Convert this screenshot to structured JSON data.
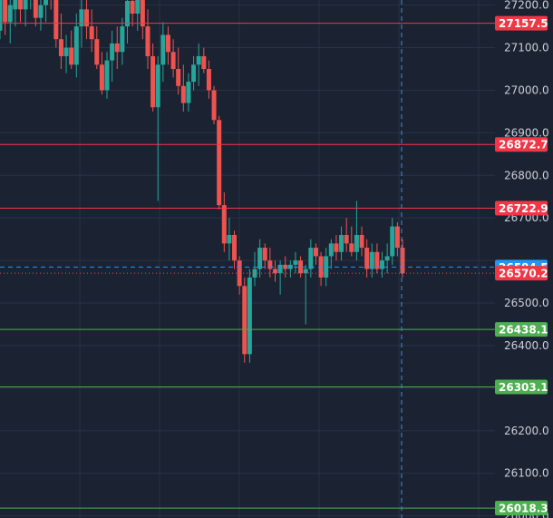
{
  "colors": {
    "background": "#1b2332",
    "grid": "#273246",
    "up": "#26a69a",
    "down": "#ef5350",
    "resistance": "#f23645",
    "support": "#4caf50",
    "current": "#2196f3",
    "axis_text": "#c9cfd8"
  },
  "price_axis": {
    "ticks": [
      "27200.0",
      "27100.0",
      "27000.0",
      "26900.0",
      "26800.0",
      "26700.0",
      "26500.0",
      "26400.0",
      "26200.0",
      "26100.0",
      "26000.0"
    ],
    "tick_values": [
      27200,
      27100,
      27000,
      26900,
      26800,
      26700,
      26500,
      26400,
      26200,
      26100,
      26000
    ]
  },
  "price_lines": [
    {
      "label": "27157.5",
      "value": 27157.5,
      "kind": "resistance"
    },
    {
      "label": "26872.7",
      "value": 26872.7,
      "kind": "resistance"
    },
    {
      "label": "26722.9",
      "value": 26722.9,
      "kind": "resistance"
    },
    {
      "label": "26438.1",
      "value": 26438.1,
      "kind": "support"
    },
    {
      "label": "26303.1",
      "value": 26303.1,
      "kind": "support"
    },
    {
      "label": "26018.3",
      "value": 26018.3,
      "kind": "support"
    }
  ],
  "price_tags": [
    {
      "label": "26584.5",
      "value": 26584.5,
      "kind": "current"
    },
    {
      "label": "26570.2",
      "value": 26570.2,
      "kind": "last"
    }
  ],
  "chart_data": {
    "type": "candlestick",
    "y_unit": "price",
    "ylim": [
      25995,
      27212
    ],
    "candles": [
      [
        27140,
        27290,
        27120,
        27250
      ],
      [
        27240,
        27260,
        27130,
        27160
      ],
      [
        27160,
        27230,
        27110,
        27200
      ],
      [
        27190,
        27280,
        27150,
        27270
      ],
      [
        27270,
        27300,
        27160,
        27190
      ],
      [
        27190,
        27250,
        27150,
        27230
      ],
      [
        27220,
        27280,
        27190,
        27240
      ],
      [
        27240,
        27270,
        27150,
        27170
      ],
      [
        27170,
        27230,
        27140,
        27200
      ],
      [
        27200,
        27260,
        27160,
        27240
      ],
      [
        27240,
        27270,
        27190,
        27220
      ],
      [
        27220,
        27250,
        27100,
        27120
      ],
      [
        27120,
        27180,
        27050,
        27080
      ],
      [
        27080,
        27130,
        27040,
        27100
      ],
      [
        27100,
        27140,
        27050,
        27060
      ],
      [
        27060,
        27180,
        27030,
        27150
      ],
      [
        27150,
        27220,
        27100,
        27190
      ],
      [
        27190,
        27230,
        27120,
        27150
      ],
      [
        27150,
        27190,
        27090,
        27120
      ],
      [
        27120,
        27150,
        27050,
        27060
      ],
      [
        27060,
        27090,
        26990,
        27000
      ],
      [
        27000,
        27090,
        26980,
        27070
      ],
      [
        27070,
        27140,
        27020,
        27110
      ],
      [
        27110,
        27150,
        27050,
        27090
      ],
      [
        27090,
        27170,
        27060,
        27150
      ],
      [
        27150,
        27240,
        27110,
        27210
      ],
      [
        27210,
        27260,
        27150,
        27180
      ],
      [
        27180,
        27250,
        27140,
        27220
      ],
      [
        27220,
        27240,
        27120,
        27150
      ],
      [
        27150,
        27190,
        27050,
        27080
      ],
      [
        27080,
        27110,
        26950,
        26960
      ],
      [
        26960,
        27080,
        26740,
        27060
      ],
      [
        27060,
        27160,
        27020,
        27130
      ],
      [
        27130,
        27150,
        27060,
        27090
      ],
      [
        27090,
        27120,
        27030,
        27050
      ],
      [
        27050,
        27100,
        26990,
        27010
      ],
      [
        27010,
        27060,
        26950,
        26970
      ],
      [
        26970,
        27040,
        26950,
        27020
      ],
      [
        27020,
        27080,
        27000,
        27060
      ],
      [
        27060,
        27110,
        27010,
        27080
      ],
      [
        27080,
        27100,
        27040,
        27050
      ],
      [
        27050,
        27070,
        26980,
        27000
      ],
      [
        27000,
        27010,
        26920,
        26930
      ],
      [
        26930,
        26940,
        26720,
        26730
      ],
      [
        26730,
        26760,
        26620,
        26640
      ],
      [
        26640,
        26700,
        26600,
        26660
      ],
      [
        26660,
        26670,
        26580,
        26600
      ],
      [
        26600,
        26610,
        26520,
        26540
      ],
      [
        26540,
        26560,
        26360,
        26380
      ],
      [
        26380,
        26580,
        26360,
        26560
      ],
      [
        26560,
        26620,
        26540,
        26580
      ],
      [
        26580,
        26650,
        26560,
        26630
      ],
      [
        26630,
        26640,
        26580,
        26600
      ],
      [
        26600,
        26630,
        26560,
        26580
      ],
      [
        26580,
        26600,
        26550,
        26570
      ],
      [
        26570,
        26600,
        26520,
        26590
      ],
      [
        26590,
        26610,
        26560,
        26580
      ],
      [
        26580,
        26600,
        26560,
        26590
      ],
      [
        26590,
        26620,
        26570,
        26600
      ],
      [
        26600,
        26610,
        26560,
        26570
      ],
      [
        26570,
        26590,
        26450,
        26580
      ],
      [
        26580,
        26650,
        26560,
        26630
      ],
      [
        26630,
        26640,
        26590,
        26610
      ],
      [
        26610,
        26620,
        26540,
        26560
      ],
      [
        26560,
        26630,
        26540,
        26610
      ],
      [
        26610,
        26650,
        26580,
        26640
      ],
      [
        26640,
        26660,
        26600,
        26620
      ],
      [
        26620,
        26680,
        26600,
        26660
      ],
      [
        26660,
        26700,
        26620,
        26640
      ],
      [
        26640,
        26680,
        26610,
        26620
      ],
      [
        26620,
        26740,
        26600,
        26660
      ],
      [
        26660,
        26680,
        26610,
        26630
      ],
      [
        26630,
        26650,
        26560,
        26580
      ],
      [
        26580,
        26640,
        26560,
        26620
      ],
      [
        26620,
        26640,
        26570,
        26580
      ],
      [
        26580,
        26620,
        26560,
        26600
      ],
      [
        26600,
        26640,
        26570,
        26610
      ],
      [
        26610,
        26700,
        26590,
        26680
      ],
      [
        26680,
        26690,
        26610,
        26630
      ],
      [
        26630,
        26650,
        26560,
        26570
      ]
    ]
  }
}
